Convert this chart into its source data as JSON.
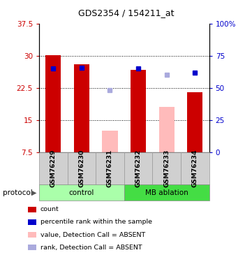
{
  "title": "GDS2354 / 154211_at",
  "samples": [
    "GSM76229",
    "GSM76230",
    "GSM76231",
    "GSM76232",
    "GSM76233",
    "GSM76234"
  ],
  "group_colors": {
    "control": "#aaffaa",
    "MB ablation": "#44dd44"
  },
  "bar_values": [
    30.1,
    28.0,
    null,
    26.7,
    null,
    21.5
  ],
  "bar_color_present": "#cc0000",
  "bar_color_absent": "#ffbbbb",
  "absent_bar_values": [
    null,
    null,
    12.5,
    null,
    18.0,
    null
  ],
  "blue_square_values": [
    27.0,
    27.2,
    null,
    27.0,
    null,
    26.0
  ],
  "blue_absent_square_values": [
    null,
    null,
    22.0,
    null,
    25.5,
    null
  ],
  "blue_square_color": "#0000cc",
  "blue_absent_square_color": "#aaaadd",
  "ylim_left": [
    7.5,
    37.5
  ],
  "ylim_right": [
    0,
    100
  ],
  "left_ticks": [
    7.5,
    15.0,
    22.5,
    30.0,
    37.5
  ],
  "right_ticks": [
    0,
    25,
    50,
    75,
    100
  ],
  "left_tick_labels": [
    "7.5",
    "15",
    "22.5",
    "30",
    "37.5"
  ],
  "right_tick_labels": [
    "0",
    "25",
    "50",
    "75",
    "100%"
  ],
  "left_tick_color": "#cc0000",
  "right_tick_color": "#0000cc",
  "grid_values": [
    15.0,
    22.5,
    30.0
  ],
  "bar_width": 0.55,
  "legend_items": [
    {
      "label": "count",
      "color": "#cc0000"
    },
    {
      "label": "percentile rank within the sample",
      "color": "#0000cc"
    },
    {
      "label": "value, Detection Call = ABSENT",
      "color": "#ffbbbb"
    },
    {
      "label": "rank, Detection Call = ABSENT",
      "color": "#aaaadd"
    }
  ]
}
